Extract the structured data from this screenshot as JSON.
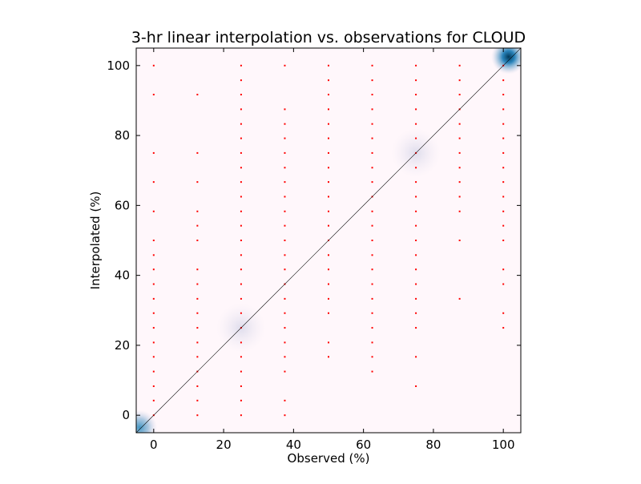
{
  "chart_data": {
    "type": "scatter",
    "title": "3-hr linear interpolation vs. observations for CLOUD",
    "xlabel": "Observed (%)",
    "ylabel": "Interpolated (%)",
    "xlim": [
      -5,
      105
    ],
    "ylim": [
      -5,
      105
    ],
    "xticks": [
      0,
      20,
      40,
      60,
      80,
      100
    ],
    "yticks": [
      0,
      20,
      40,
      60,
      80,
      100
    ],
    "grid": false,
    "background_density": {
      "colormap": "PuBu",
      "peaks": [
        {
          "x": 101.5,
          "y": 102.5,
          "intensity": 1.0
        },
        {
          "x": -4.0,
          "y": -3.5,
          "intensity": 0.6
        },
        {
          "x": 25,
          "y": 25,
          "intensity": 0.12
        },
        {
          "x": 75,
          "y": 75,
          "intensity": 0.1
        }
      ]
    },
    "reference_line": {
      "from": [
        -5,
        -5
      ],
      "to": [
        105,
        105
      ],
      "color": "#000000"
    },
    "points_color": "#ff0000",
    "observed_levels": [
      0,
      12.5,
      25,
      37.5,
      50,
      62.5,
      75,
      87.5,
      100
    ],
    "points": [
      {
        "x": 0,
        "y": [
          0,
          4.2,
          8.3,
          12.5,
          16.7,
          20.8,
          25,
          29.2,
          33.3,
          37.5,
          41.7,
          45.8,
          50,
          58.3,
          66.7,
          75,
          91.7,
          100
        ]
      },
      {
        "x": 12.5,
        "y": [
          0,
          4.2,
          8.3,
          12.5,
          16.7,
          20.8,
          25,
          29.2,
          33.3,
          37.5,
          41.7,
          50,
          54.2,
          58.3,
          66.7,
          75,
          91.7
        ]
      },
      {
        "x": 25,
        "y": [
          0,
          4.2,
          8.3,
          12.5,
          16.7,
          20.8,
          25,
          29.2,
          33.3,
          37.5,
          41.7,
          45.8,
          50,
          54.2,
          58.3,
          62.5,
          66.7,
          70.8,
          75,
          79.2,
          83.3,
          87.5,
          91.7,
          95.8,
          100
        ]
      },
      {
        "x": 37.5,
        "y": [
          0,
          4.2,
          12.5,
          16.7,
          20.8,
          25,
          29.2,
          33.3,
          37.5,
          41.7,
          45.8,
          50,
          54.2,
          58.3,
          62.5,
          66.7,
          70.8,
          75,
          79.2,
          83.3,
          87.5,
          100
        ]
      },
      {
        "x": 50,
        "y": [
          16.7,
          20.8,
          29.2,
          33.3,
          37.5,
          41.7,
          45.8,
          50,
          54.2,
          58.3,
          62.5,
          66.7,
          70.8,
          75,
          79.2,
          83.3,
          87.5,
          91.7,
          95.8,
          100
        ]
      },
      {
        "x": 62.5,
        "y": [
          12.5,
          16.7,
          20.8,
          25,
          29.2,
          33.3,
          37.5,
          41.7,
          45.8,
          50,
          54.2,
          58.3,
          62.5,
          66.7,
          70.8,
          75,
          79.2,
          83.3,
          87.5,
          91.7,
          95.8,
          100
        ]
      },
      {
        "x": 75,
        "y": [
          8.3,
          16.7,
          25,
          29.2,
          33.3,
          37.5,
          41.7,
          45.8,
          50,
          54.2,
          58.3,
          62.5,
          66.7,
          70.8,
          75,
          79.2,
          83.3,
          87.5,
          91.7,
          95.8,
          100
        ]
      },
      {
        "x": 87.5,
        "y": [
          33.3,
          50,
          58.3,
          62.5,
          66.7,
          70.8,
          75,
          79.2,
          83.3,
          87.5,
          91.7,
          95.8,
          100
        ]
      },
      {
        "x": 100,
        "y": [
          25,
          29.2,
          37.5,
          41.7,
          50,
          54.2,
          58.3,
          62.5,
          66.7,
          70.8,
          75,
          79.2,
          83.3,
          87.5,
          91.7,
          95.8,
          100
        ]
      }
    ]
  }
}
